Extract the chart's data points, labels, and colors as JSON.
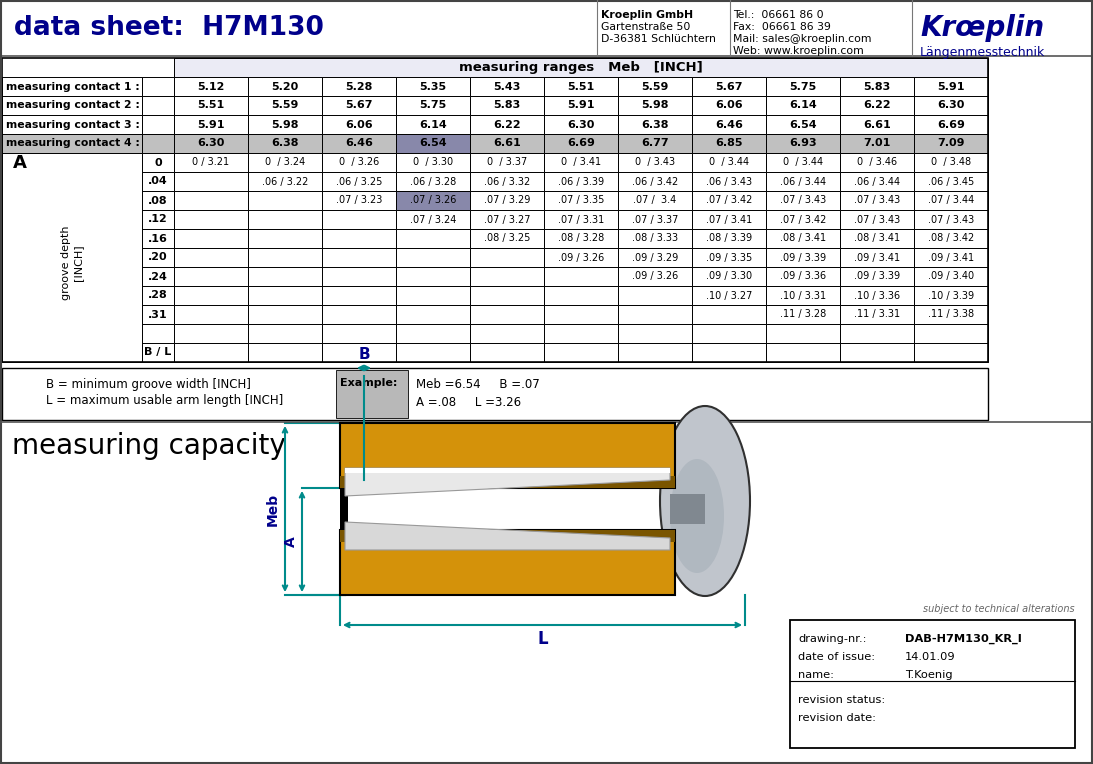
{
  "title": "data sheet:  H7M130",
  "company_name": "Kroeplin GmbH",
  "company_addr1": "Gartenstraße 50",
  "company_addr2": "D-36381 Schlüchtern",
  "tel": "Tel.:  06661 86 0",
  "fax": "Fax:  06661 86 39",
  "mail": "Mail: sales@kroeplin.com",
  "web": "Web: www.kroeplin.com",
  "brand1": "Krœplin",
  "brand2": "Längenmesstechnik",
  "table_header": "measuring ranges   Meb   [INCH]",
  "mc1_label": "measuring contact 1 :",
  "mc2_label": "measuring contact 2 :",
  "mc3_label": "measuring contact 3 :",
  "mc4_label": "measuring contact 4 :",
  "mc1_vals": [
    "5.12",
    "5.20",
    "5.28",
    "5.35",
    "5.43",
    "5.51",
    "5.59",
    "5.67",
    "5.75",
    "5.83",
    "5.91"
  ],
  "mc2_vals": [
    "5.51",
    "5.59",
    "5.67",
    "5.75",
    "5.83",
    "5.91",
    "5.98",
    "6.06",
    "6.14",
    "6.22",
    "6.30"
  ],
  "mc3_vals": [
    "5.91",
    "5.98",
    "6.06",
    "6.14",
    "6.22",
    "6.30",
    "6.38",
    "6.46",
    "6.54",
    "6.61",
    "6.69"
  ],
  "mc4_vals": [
    "6.30",
    "6.38",
    "6.46",
    "6.54",
    "6.61",
    "6.69",
    "6.77",
    "6.85",
    "6.93",
    "7.01",
    "7.09"
  ],
  "groove_rows": [
    {
      "A": "0",
      "data": [
        "0 / 3.21",
        "0  / 3.24",
        "0  / 3.26",
        "0  / 3.30",
        "0  / 3.37",
        "0  / 3.41",
        "0  / 3.43",
        "0  / 3.44",
        "0  / 3.44",
        "0  / 3.46",
        "0  / 3.48"
      ]
    },
    {
      "A": ".04",
      "data": [
        "",
        ".06 / 3.22",
        ".06 / 3.25",
        ".06 / 3.28",
        ".06 / 3.32",
        ".06 / 3.39",
        ".06 / 3.42",
        ".06 / 3.43",
        ".06 / 3.44",
        ".06 / 3.44",
        ".06 / 3.45"
      ]
    },
    {
      "A": ".08",
      "data": [
        "",
        "",
        ".07 / 3.23",
        ".07 / 3.26",
        ".07 / 3.29",
        ".07 / 3.35",
        ".07 /  3.4",
        ".07 / 3.42",
        ".07 / 3.43",
        ".07 / 3.43",
        ".07 / 3.44"
      ]
    },
    {
      "A": ".12",
      "data": [
        "",
        "",
        "",
        ".07 / 3.24",
        ".07 / 3.27",
        ".07 / 3.31",
        ".07 / 3.37",
        ".07 / 3.41",
        ".07 / 3.42",
        ".07 / 3.43",
        ".07 / 3.43"
      ]
    },
    {
      "A": ".16",
      "data": [
        "",
        "",
        "",
        "",
        ".08 / 3.25",
        ".08 / 3.28",
        ".08 / 3.33",
        ".08 / 3.39",
        ".08 / 3.41",
        ".08 / 3.41",
        ".08 / 3.42"
      ]
    },
    {
      "A": ".20",
      "data": [
        "",
        "",
        "",
        "",
        "",
        ".09 / 3.26",
        ".09 / 3.29",
        ".09 / 3.35",
        ".09 / 3.39",
        ".09 / 3.41",
        ".09 / 3.41"
      ]
    },
    {
      "A": ".24",
      "data": [
        "",
        "",
        "",
        "",
        "",
        "",
        ".09 / 3.26",
        ".09 / 3.30",
        ".09 / 3.36",
        ".09 / 3.39",
        ".09 / 3.40"
      ]
    },
    {
      "A": ".28",
      "data": [
        "",
        "",
        "",
        "",
        "",
        "",
        "",
        ".10 / 3.27",
        ".10 / 3.31",
        ".10 / 3.36",
        ".10 / 3.39"
      ]
    },
    {
      "A": ".31",
      "data": [
        "",
        "",
        "",
        "",
        "",
        "",
        "",
        "",
        ".11 / 3.28",
        ".11 / 3.31",
        ".11 / 3.38"
      ]
    },
    {
      "A": "",
      "data": [
        "",
        "",
        "",
        "",
        "",
        "",
        "",
        "",
        "",
        "",
        ""
      ]
    },
    {
      "A": "B / L",
      "data": [
        "",
        "",
        "",
        "",
        "",
        "",
        "",
        "",
        "",
        "",
        ""
      ]
    }
  ],
  "note_b": "B = minimum groove width [INCH]",
  "note_l": "L = maximum usable arm length [INCH]",
  "example_label": "Example:",
  "example_meb": "Meb =6.54",
  "example_b": "B =.07",
  "example_a": "A =.08",
  "example_l": "L =3.26",
  "measuring_capacity_label": "measuring capacity",
  "dim_B": "B",
  "dim_Meb": "Meb",
  "dim_A": "A",
  "dim_L": "L",
  "subject_to": "subject to technical alterations",
  "drawing_nr_label": "drawing-nr.:",
  "drawing_nr_val": "DAB-H7M130_KR_I",
  "date_label": "date of issue:",
  "date_val": "14.01.09",
  "name_label": "name:",
  "name_val": "T.Koenig",
  "rev_status_label": "revision status:",
  "rev_date_label": "revision date:",
  "bg_color": "#ffffff",
  "dark_blue": "#00008B",
  "teal": "#008B8B",
  "orange": "#D4920A",
  "dark_orange": "#7A5500",
  "gray_mc4": "#c0c0c0",
  "highlight": "#8888aa"
}
